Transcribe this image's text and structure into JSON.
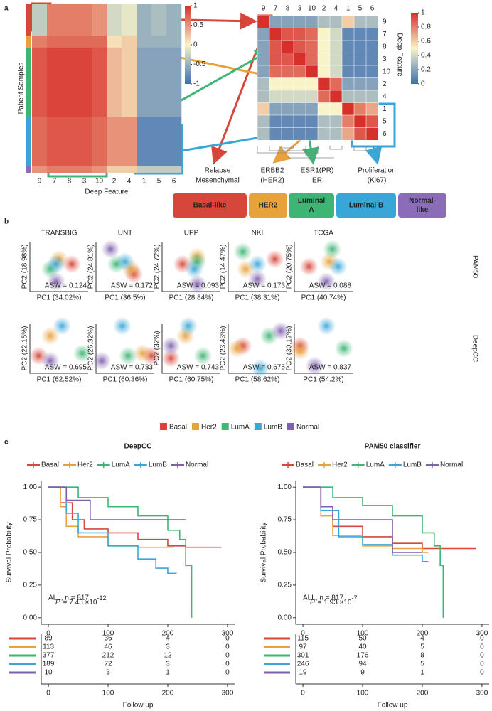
{
  "panel_labels": [
    "a",
    "b",
    "c"
  ],
  "annotations": [
    [
      "Relapse",
      "Mesenchymal"
    ],
    [
      "ERBB2",
      "(HER2)"
    ],
    [
      "ESR1(PR)",
      "ER"
    ],
    [
      "Proliferation",
      "(Ki67)"
    ]
  ],
  "subtypes": [
    {
      "lines": [
        "Basal-like"
      ],
      "color": "#d6463a"
    },
    {
      "lines": [
        "HER2"
      ],
      "color": "#e8a23c"
    },
    {
      "lines": [
        "Luminal",
        "A"
      ],
      "color": "#3db575"
    },
    {
      "lines": [
        "Luminal B"
      ],
      "color": "#3aa6d8"
    },
    {
      "lines": [
        "Normal-",
        "like"
      ],
      "color": "#8a6cb8"
    }
  ],
  "pca_titles": [
    "TRANSBIG",
    "UNT",
    "UPP",
    "NKI",
    "TCGA"
  ],
  "pca_rows": [
    "PAM50",
    "DeepCC"
  ],
  "pca_legend": [
    {
      "name": "Basal",
      "color": "#d6463a"
    },
    {
      "name": "Her2",
      "color": "#e8a23c"
    },
    {
      "name": "LumA",
      "color": "#3db575"
    },
    {
      "name": "LumB",
      "color": "#3aa6d8"
    },
    {
      "name": "Normal",
      "color": "#7f5fae"
    }
  ],
  "chart_data": [
    {
      "type": "heatmap",
      "xlabel": "Deep Feature",
      "ylabel": "Patient Samples",
      "categories": [
        "9",
        "7",
        "8",
        "3",
        "10",
        "2",
        "4",
        "1",
        "5",
        "6"
      ],
      "row_groups": [
        {
          "color": "#d6463a",
          "values": [
            -0.3,
            0.6,
            0.6,
            0.6,
            0.5,
            -0.2,
            -0.1,
            -0.5,
            -0.4,
            -0.5
          ]
        },
        {
          "color": "#e8a23c",
          "values": [
            0.6,
            0.7,
            0.7,
            0.7,
            0.7,
            0.1,
            0.2,
            -0.5,
            -0.5,
            -0.5
          ]
        },
        {
          "color": "#3db575",
          "values": [
            0.8,
            0.9,
            0.9,
            0.9,
            0.8,
            0.3,
            0.2,
            -0.6,
            -0.6,
            -0.6
          ]
        },
        {
          "color": "#3aa6d8",
          "values": [
            0.7,
            0.8,
            0.8,
            0.8,
            0.7,
            0.5,
            0.5,
            -0.8,
            -0.8,
            -0.8
          ]
        },
        {
          "color": "#8a6cb8",
          "values": [
            0.5,
            0.6,
            0.6,
            0.6,
            0.5,
            0.2,
            0.2,
            -0.3,
            -0.3,
            -0.3
          ]
        }
      ],
      "clim": [
        -1,
        1
      ],
      "cticks": [
        1,
        0.5,
        0,
        -0.5,
        -1
      ]
    },
    {
      "type": "heatmap",
      "ylabel": "Deep Feature",
      "categories": [
        "9",
        "7",
        "8",
        "3",
        "10",
        "2",
        "4",
        "1",
        "5",
        "6"
      ],
      "matrix": [
        [
          1,
          0.2,
          0.2,
          0.2,
          0.2,
          0.3,
          0.3,
          0.6,
          0.3,
          0.3
        ],
        [
          0.2,
          1,
          0.9,
          0.9,
          0.85,
          0.5,
          0.4,
          0.1,
          0.1,
          0.1
        ],
        [
          0.2,
          0.9,
          1,
          0.9,
          0.85,
          0.5,
          0.4,
          0.1,
          0.1,
          0.1
        ],
        [
          0.2,
          0.9,
          0.9,
          1,
          0.85,
          0.5,
          0.4,
          0.1,
          0.1,
          0.1
        ],
        [
          0.2,
          0.85,
          0.85,
          0.85,
          1,
          0.5,
          0.4,
          0.1,
          0.1,
          0.1
        ],
        [
          0.3,
          0.5,
          0.5,
          0.5,
          0.5,
          1,
          0.85,
          0.2,
          0.2,
          0.2
        ],
        [
          0.3,
          0.4,
          0.4,
          0.4,
          0.4,
          0.85,
          1,
          0.3,
          0.3,
          0.3
        ],
        [
          0.6,
          0.2,
          0.2,
          0.2,
          0.2,
          0.5,
          0.5,
          1,
          0.8,
          0.7
        ],
        [
          0.3,
          0.1,
          0.1,
          0.1,
          0.1,
          0.3,
          0.3,
          0.8,
          1,
          0.9
        ],
        [
          0.3,
          0.1,
          0.1,
          0.1,
          0.1,
          0.3,
          0.3,
          0.7,
          0.9,
          1
        ]
      ],
      "clim": [
        0,
        1
      ],
      "cticks": [
        1,
        0.8,
        0.6,
        0.4,
        0.2,
        0
      ]
    },
    {
      "type": "scatter",
      "xlabel": "PC1 (34.02%)",
      "ylabel": "PC2 (18.98%)",
      "annotation": "ASW = 0.124",
      "x": [
        0.72,
        0.5,
        0.35,
        0.45,
        0.45
      ],
      "values": [
        0.55,
        0.65,
        0.45,
        0.55,
        0.2
      ]
    },
    {
      "type": "scatter",
      "xlabel": "PC1 (36.5%)",
      "ylabel": "PC2 (24.81%)",
      "annotation": "ASW = 0.172",
      "x": [
        0.65,
        0.6,
        0.35,
        0.5,
        0.25
      ],
      "values": [
        0.35,
        0.45,
        0.55,
        0.6,
        0.85
      ]
    },
    {
      "type": "scatter",
      "xlabel": "PC1 (28.84%)",
      "ylabel": "PC2 (24.72%)",
      "annotation": "ASW = 0.093",
      "x": [
        0.35,
        0.6,
        0.6,
        0.55,
        0.6
      ],
      "values": [
        0.55,
        0.7,
        0.6,
        0.45,
        0.15
      ]
    },
    {
      "type": "scatter",
      "xlabel": "PC1 (38.31%)",
      "ylabel": "PC2 (14.47%)",
      "annotation": "ASW = 0.173",
      "x": [
        0.8,
        0.3,
        0.25,
        0.5,
        0.5
      ],
      "values": [
        0.65,
        0.45,
        0.8,
        0.55,
        0.25
      ]
    },
    {
      "type": "scatter",
      "xlabel": "PC1 (40.74%)",
      "ylabel": "PC2 (20.75%)",
      "annotation": "ASW = 0.088",
      "x": [
        0.25,
        0.6,
        0.65,
        0.75,
        0.55
      ],
      "values": [
        0.5,
        0.6,
        0.85,
        0.5,
        0.2
      ]
    },
    {
      "type": "scatter",
      "xlabel": "PC1 (62.52%)",
      "ylabel": "PC2 (22.15%)",
      "annotation": "ASW = 0.695",
      "x": [
        0.15,
        0.35,
        0.9,
        0.55,
        0.35
      ],
      "values": [
        0.35,
        0.75,
        0.4,
        0.95,
        0.25
      ]
    },
    {
      "type": "scatter",
      "xlabel": "PC1 (60.36%)",
      "ylabel": "PC2 (26.32%)",
      "annotation": "ASW = 0.733",
      "x": [
        0.95,
        0.8,
        0.55,
        0.45,
        0.1
      ],
      "values": [
        0.35,
        0.4,
        0.35,
        0.95,
        0.25
      ]
    },
    {
      "type": "scatter",
      "xlabel": "PC1 (60.75%)",
      "ylabel": "PC2 (32%)",
      "annotation": "ASW = 0.743",
      "x": [
        0.15,
        0.4,
        0.7,
        0.45,
        0.15
      ],
      "values": [
        0.3,
        0.75,
        0.35,
        0.95,
        0.55
      ]
    },
    {
      "type": "scatter",
      "xlabel": "PC1 (58.62%)",
      "ylabel": "PC2 (23.43%)",
      "annotation": "ASW = 0.675",
      "x": [
        0.25,
        0.15,
        0.7,
        0.55,
        0.9
      ],
      "values": [
        0.55,
        0.5,
        0.75,
        0.1,
        0.85
      ]
    },
    {
      "type": "scatter",
      "xlabel": "PC1 (54.2%)",
      "ylabel": "PC2 (30.17%)",
      "annotation": "ASW = 0.837",
      "x": [
        0.1,
        0.1,
        0.85,
        0.55,
        0.35
      ],
      "values": [
        0.55,
        0.45,
        0.5,
        0.95,
        0.15
      ]
    },
    {
      "type": "line",
      "title": "DeepCC",
      "xlabel": "Follow up",
      "ylabel": "Survival Probability",
      "xlim": [
        -12,
        312
      ],
      "ylim": [
        -0.05,
        1.05
      ],
      "xticks": [
        0,
        100,
        200,
        300
      ],
      "yticks": [
        {
          "value": 0,
          "label": "0.00"
        },
        {
          "value": 0.25,
          "label": "0.25"
        },
        {
          "value": 0.5,
          "label": "0.50"
        },
        {
          "value": 0.75,
          "label": "0.75"
        },
        {
          "value": 1,
          "label": "1.00"
        }
      ],
      "p_value": {
        "prefix": "P",
        "text": "= 7.43 ×10",
        "exponent": "-12"
      },
      "note": "ALL, n = 817",
      "series": [
        {
          "name": "Basal",
          "color": "#d6463a",
          "x": [
            0,
            20,
            40,
            60,
            100,
            150,
            200,
            230,
            290
          ],
          "values": [
            1,
            0.88,
            0.75,
            0.68,
            0.65,
            0.6,
            0.55,
            0.54,
            0.54
          ]
        },
        {
          "name": "Her2",
          "color": "#e8a23c",
          "x": [
            0,
            20,
            30,
            50,
            100,
            150,
            210
          ],
          "values": [
            1,
            0.85,
            0.7,
            0.62,
            0.55,
            0.54,
            0.54
          ]
        },
        {
          "name": "LumA",
          "color": "#3db575",
          "x": [
            0,
            50,
            100,
            150,
            200,
            220,
            230,
            240
          ],
          "values": [
            1,
            0.92,
            0.85,
            0.78,
            0.67,
            0.6,
            0.4,
            0
          ]
        },
        {
          "name": "LumB",
          "color": "#3aa6d8",
          "x": [
            0,
            30,
            50,
            100,
            150,
            180,
            200,
            215
          ],
          "values": [
            1,
            0.8,
            0.65,
            0.55,
            0.45,
            0.38,
            0.34,
            0.34
          ]
        },
        {
          "name": "Normal",
          "color": "#7f5fae",
          "x": [
            0,
            30,
            70,
            230
          ],
          "values": [
            1,
            0.9,
            0.75,
            0.75
          ]
        }
      ],
      "risk_table": [
        [
          89,
          36,
          4,
          0
        ],
        [
          113,
          46,
          3,
          0
        ],
        [
          377,
          212,
          12,
          0
        ],
        [
          189,
          72,
          3,
          0
        ],
        [
          10,
          3,
          1,
          0
        ]
      ]
    },
    {
      "type": "line",
      "title": "PAM50 classifier",
      "xlabel": "Follow up",
      "ylabel": "Survival Probability",
      "xlim": [
        -12,
        312
      ],
      "ylim": [
        -0.05,
        1.05
      ],
      "xticks": [
        0,
        100,
        200,
        300
      ],
      "yticks": [
        {
          "value": 0,
          "label": "0.00"
        },
        {
          "value": 0.25,
          "label": "0.25"
        },
        {
          "value": 0.5,
          "label": "0.50"
        },
        {
          "value": 0.75,
          "label": "0.75"
        },
        {
          "value": 1,
          "label": "1.00"
        }
      ],
      "p_value": {
        "prefix": "P",
        "text": "= 1.93 ×10",
        "exponent": "-7"
      },
      "note": "ALL, n = 817",
      "series": [
        {
          "name": "Basal",
          "color": "#d6463a",
          "x": [
            0,
            30,
            50,
            100,
            150,
            200,
            290
          ],
          "values": [
            1,
            0.85,
            0.7,
            0.62,
            0.57,
            0.53,
            0.53
          ]
        },
        {
          "name": "Her2",
          "color": "#e8a23c",
          "x": [
            0,
            30,
            50,
            100,
            150,
            200,
            210
          ],
          "values": [
            1,
            0.78,
            0.63,
            0.55,
            0.53,
            0.5,
            0.5
          ]
        },
        {
          "name": "LumA",
          "color": "#3db575",
          "x": [
            0,
            50,
            100,
            150,
            200,
            220,
            230,
            235
          ],
          "values": [
            1,
            0.92,
            0.86,
            0.78,
            0.65,
            0.55,
            0.4,
            0
          ]
        },
        {
          "name": "LumB",
          "color": "#3aa6d8",
          "x": [
            0,
            30,
            60,
            100,
            150,
            200,
            210
          ],
          "values": [
            1,
            0.82,
            0.62,
            0.56,
            0.48,
            0.43,
            0.43
          ]
        },
        {
          "name": "Normal",
          "color": "#7f5fae",
          "x": [
            0,
            30,
            50,
            150,
            200
          ],
          "values": [
            1,
            0.85,
            0.75,
            0.5,
            0.5
          ]
        }
      ],
      "risk_table": [
        [
          115,
          50,
          4,
          0
        ],
        [
          97,
          40,
          5,
          0
        ],
        [
          301,
          176,
          8,
          0
        ],
        [
          246,
          94,
          5,
          0
        ],
        [
          19,
          9,
          1,
          0
        ]
      ]
    }
  ]
}
